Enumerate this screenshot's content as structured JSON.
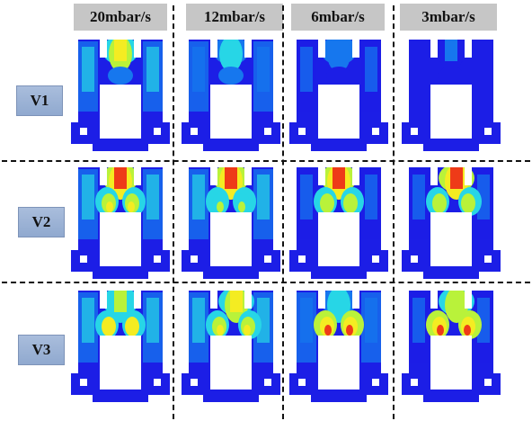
{
  "columns": [
    "20mbar/s",
    "12mbar/s",
    "6mbar/s",
    "3mbar/s"
  ],
  "rows": [
    "V1",
    "V2",
    "V3"
  ],
  "colormap": [
    "#1c1ee6",
    "#1677ee",
    "#27d6e6",
    "#b9f23a",
    "#f4ec22",
    "#ee3b18"
  ],
  "cells": [
    [
      {
        "jet": 0.78,
        "plume": 0.5,
        "core": 0.0,
        "skew": 0
      },
      {
        "jet": 0.42,
        "plume": 0.3,
        "core": 0.0,
        "skew": 0
      },
      {
        "jet": 0.22,
        "plume": 0.12,
        "core": 0.0,
        "skew": 0
      },
      {
        "jet": 0.12,
        "plume": 0.05,
        "core": 0.0,
        "skew": 0
      }
    ],
    [
      {
        "jet": 0.96,
        "plume": 0.45,
        "core": 0.7,
        "skew": 0
      },
      {
        "jet": 0.98,
        "plume": 0.42,
        "core": 0.55,
        "skew": 0
      },
      {
        "jet": 1.0,
        "plume": 0.18,
        "core": 0.6,
        "skew": 0
      },
      {
        "jet": 1.0,
        "plume": 0.12,
        "core": 0.6,
        "skew": 1
      }
    ],
    [
      {
        "jet": 0.62,
        "plume": 0.5,
        "core": 0.85,
        "skew": 0
      },
      {
        "jet": 0.85,
        "plume": 0.45,
        "core": 0.8,
        "skew": 1
      },
      {
        "jet": 0.45,
        "plume": 0.22,
        "core": 0.95,
        "skew": 0
      },
      {
        "jet": 0.65,
        "plume": 0.18,
        "core": 0.95,
        "skew": 1
      }
    ]
  ]
}
